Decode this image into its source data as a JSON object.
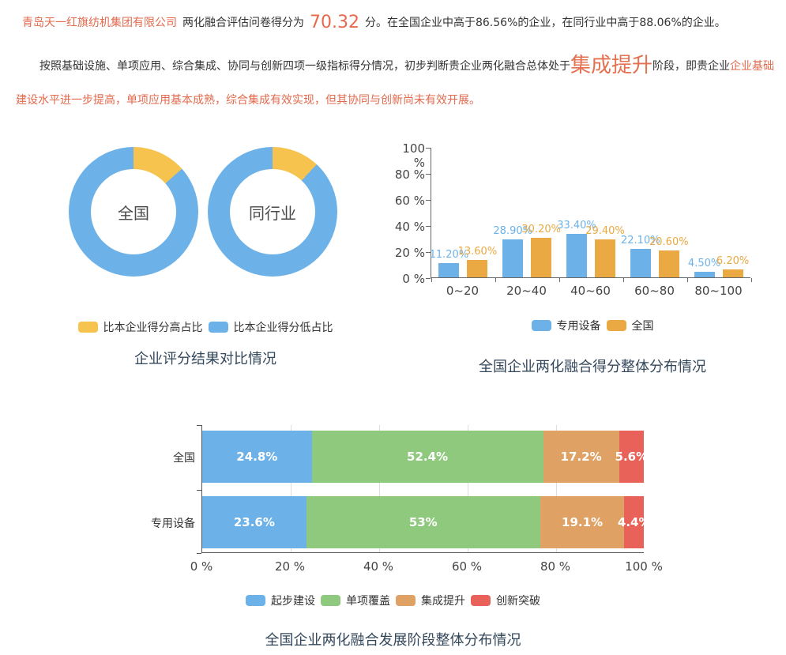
{
  "colors": {
    "blue": "#6cb2e8",
    "yellow": "#f6c34f",
    "orange": "#eaa943",
    "green": "#8fc97e",
    "tan": "#e0a165",
    "red": "#e8625a",
    "salmon_text": "#e2694c",
    "title_text": "#33475b"
  },
  "report": {
    "line1": {
      "company": "青岛天一红旗纺机集团有限公司",
      "mid": "两化融合评估问卷得分为",
      "score": "70.32",
      "tail": "分。在全国企业中高于86.56%的企业，在同行业中高于88.06%的企业。"
    },
    "line2": {
      "lead": "按照基础设施、单项应用、综合集成、协同与创新四项一级指标得分情况，初步判断贵企业两化融合总体处于",
      "stage": "集成提升",
      "mid": "阶段，即贵企业",
      "tail": "企业基础建设水平进一步提高，单项应用基本成熟，综合集成有效实现，但其协同与创新尚未有效开展。"
    }
  },
  "chart_data": [
    {
      "type": "pie",
      "subtype": "donut-pair",
      "title": "企业评分结果对比情况",
      "legend_position": "bottom",
      "legend": [
        {
          "label": "比本企业得分高占比",
          "color": "#f6c34f"
        },
        {
          "label": "比本企业得分低占比",
          "color": "#6cb2e8"
        }
      ],
      "donuts": [
        {
          "label": "全国",
          "slices": [
            {
              "name": "比本企业得分高占比",
              "value": 13.44,
              "color": "#f6c34f"
            },
            {
              "name": "比本企业得分低占比",
              "value": 86.56,
              "color": "#6cb2e8"
            }
          ]
        },
        {
          "label": "同行业",
          "slices": [
            {
              "name": "比本企业得分高占比",
              "value": 11.94,
              "color": "#f6c34f"
            },
            {
              "name": "比本企业得分低占比",
              "value": 88.06,
              "color": "#6cb2e8"
            }
          ]
        }
      ]
    },
    {
      "type": "bar",
      "subtype": "grouped-vertical",
      "title": "全国企业两化融合得分整体分布情况",
      "categories": [
        "0~20",
        "20~40",
        "40~60",
        "60~80",
        "80~100"
      ],
      "series": [
        {
          "name": "专用设备",
          "color": "#6cb2e8",
          "values": [
            11.2,
            28.9,
            33.4,
            22.1,
            4.5
          ],
          "labels": [
            "11.20%",
            "28.90%",
            "33.40%",
            "22.10%",
            "4.50%"
          ]
        },
        {
          "name": "全国",
          "color": "#eaa943",
          "values": [
            13.6,
            30.2,
            29.4,
            20.6,
            6.2
          ],
          "labels": [
            "13.60%",
            "30.20%",
            "29.40%",
            "20.60%",
            "6.20%"
          ]
        }
      ],
      "yticks": [
        "100 %",
        "80 %",
        "60 %",
        "40 %",
        "20 %",
        "0 %"
      ],
      "ylim": [
        0,
        100
      ],
      "grid": false,
      "legend_position": "bottom"
    },
    {
      "type": "bar",
      "subtype": "horizontal-stacked",
      "title": "全国企业两化融合发展阶段整体分布情况",
      "stages": [
        {
          "name": "起步建设",
          "color": "#6cb2e8"
        },
        {
          "name": "单项覆盖",
          "color": "#8fc97e"
        },
        {
          "name": "集成提升",
          "color": "#e0a165"
        },
        {
          "name": "创新突破",
          "color": "#e8625a"
        }
      ],
      "rows": [
        {
          "label": "全国",
          "values": [
            24.8,
            52.4,
            17.2,
            5.6
          ],
          "labels": [
            "24.8%",
            "52.4%",
            "17.2%",
            "5.6%"
          ]
        },
        {
          "label": "专用设备",
          "values": [
            23.6,
            53,
            19.1,
            4.4
          ],
          "labels": [
            "23.6%",
            "53%",
            "19.1%",
            "4.4%"
          ]
        }
      ],
      "xticks": [
        "0 %",
        "20 %",
        "40 %",
        "60 %",
        "80 %",
        "100 %"
      ],
      "xlim": [
        0,
        100
      ],
      "grid": true,
      "legend_position": "bottom"
    }
  ]
}
